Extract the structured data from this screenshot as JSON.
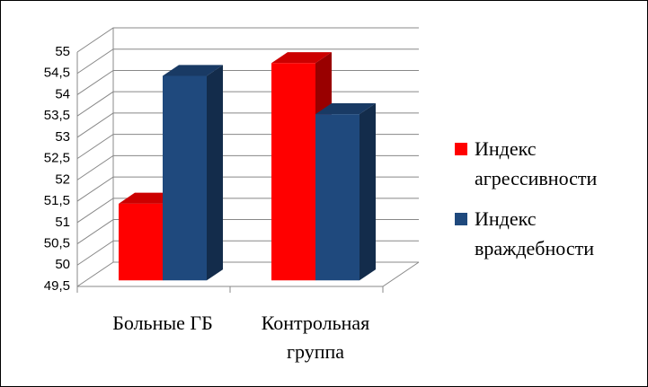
{
  "chart_data": {
    "type": "bar3d",
    "categories": [
      "Больные ГБ",
      "Контрольная группа"
    ],
    "series": [
      {
        "name": "Индекс агрессивности",
        "color": "#ff0000",
        "values": [
          51.3,
          54.6
        ]
      },
      {
        "name": "Индекс враждебности",
        "color": "#1f497d",
        "values": [
          54.3,
          53.4
        ]
      }
    ],
    "ylim": [
      49.5,
      55
    ],
    "yticks": [
      {
        "value": 49.5,
        "label": "49,5"
      },
      50,
      {
        "value": 50.5,
        "label": "50,5"
      },
      51,
      {
        "value": 51.5,
        "label": "51,5"
      },
      52,
      {
        "value": 52.5,
        "label": "52,5"
      },
      53,
      {
        "value": 53.5,
        "label": "53,5"
      },
      54,
      {
        "value": 54.5,
        "label": "54,5"
      },
      55
    ],
    "grid": true,
    "legend": "right"
  }
}
